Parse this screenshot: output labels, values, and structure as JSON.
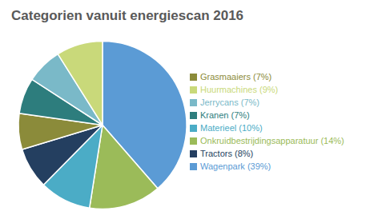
{
  "chart_data": {
    "type": "pie",
    "title": "Categorien vanuit energiescan 2016",
    "categories": [
      "Wagenpark (39%)",
      "Onkruidbestrijdingsapparatuur (14%)",
      "Materieel (10%)",
      "Tractors (8%)",
      "Grasmaaiers (7%)",
      "Kranen (7%)",
      "Jerrycans (7%)",
      "Huurmachines (9%)"
    ],
    "values": [
      39,
      14,
      10,
      8,
      7,
      7,
      7,
      9
    ],
    "colors": [
      "#5b9bd5",
      "#9bbb59",
      "#4bacc6",
      "#243f60",
      "#8b8b3a",
      "#2d7d7d",
      "#7ab9c8",
      "#c9d97a"
    ],
    "legend": "right"
  }
}
